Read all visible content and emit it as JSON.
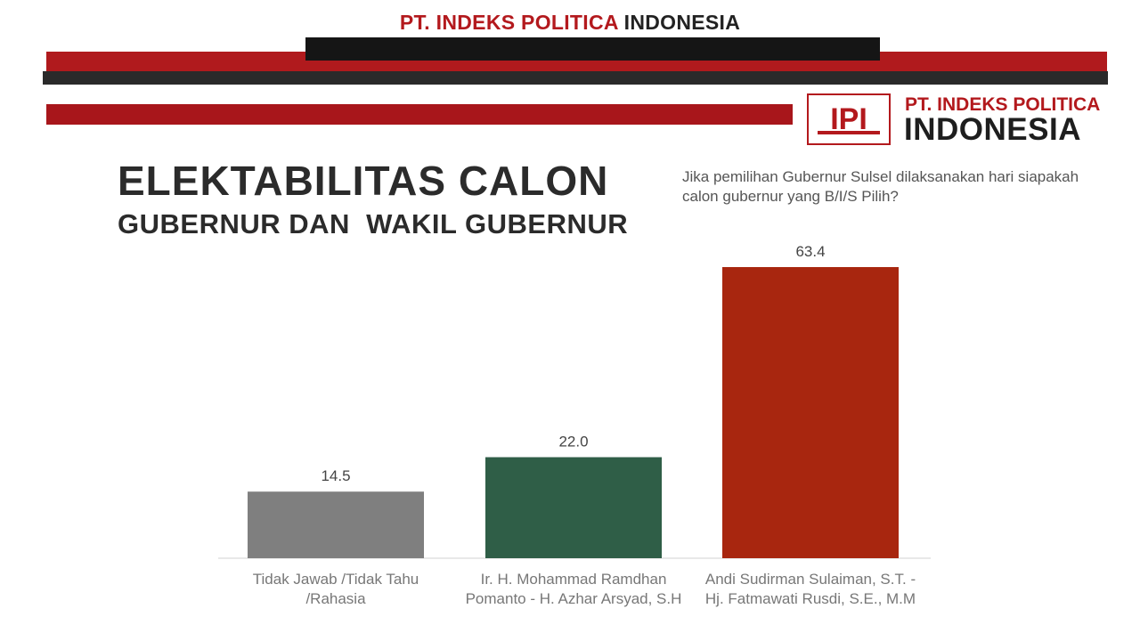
{
  "header": {
    "top_title_red": "PT. INDEKS POLITICA",
    "top_title_dark": "INDONESIA",
    "logo_line1": "PT. INDEKS POLITICA",
    "logo_line2": "INDONESIA",
    "logo_mark": "IPI"
  },
  "colors": {
    "brand_red": "#b3191d",
    "dark": "#1e1e1e"
  },
  "chart_data": {
    "type": "bar",
    "title_line1": "ELEKTABILITAS CALON",
    "title_line2": "GUBERNUR DAN  WAKIL GUBERNUR",
    "subtitle": "Jika pemilihan Gubernur Sulsel dilaksanakan hari siapakah calon gubernur yang B/I/S Pilih?",
    "categories": [
      "Tidak Jawab /Tidak Tahu /Rahasia",
      "Ir. H. Mohammad Ramdhan Pomanto - H. Azhar Arsyad, S.H",
      "Andi Sudirman Sulaiman, S.T. - Hj. Fatmawati Rusdi, S.E., M.M"
    ],
    "values": [
      14.5,
      22.0,
      63.4
    ],
    "value_labels": [
      "14.5",
      "22.0",
      "63.4"
    ],
    "colors": [
      "#7f7f7f",
      "#2f5e47",
      "#a8260f"
    ],
    "ylim": [
      0,
      70
    ],
    "grid": false
  }
}
